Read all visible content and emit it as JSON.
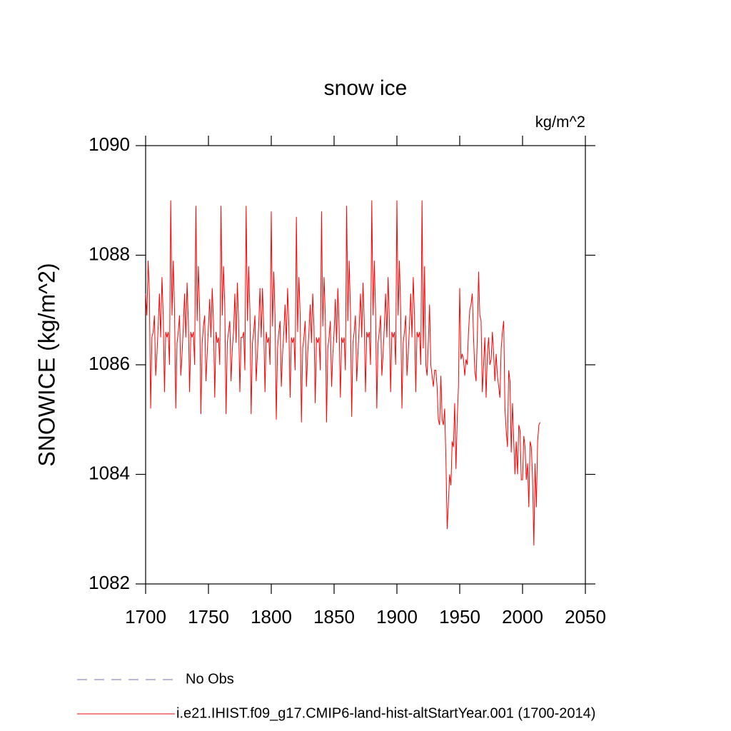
{
  "chart_data": {
    "type": "line",
    "title": "snow ice",
    "units": "kg/m^2",
    "ylabel": "SNOWICE  (kg/m^2)",
    "xlim": [
      1700,
      2050
    ],
    "xticks": [
      1700,
      1750,
      1800,
      1850,
      1900,
      1950,
      2000,
      2050
    ],
    "ylim": [
      1082,
      1090
    ],
    "yticks": [
      1082,
      1084,
      1086,
      1088,
      1090
    ],
    "x": [
      1700,
      1701,
      1702,
      1703,
      1704,
      1705,
      1706,
      1707,
      1708,
      1709,
      1710,
      1711,
      1712,
      1713,
      1714,
      1715,
      1716,
      1717,
      1718,
      1719,
      1720,
      1721,
      1722,
      1723,
      1724,
      1725,
      1726,
      1727,
      1728,
      1729,
      1730,
      1731,
      1732,
      1733,
      1734,
      1735,
      1736,
      1737,
      1738,
      1739,
      1740,
      1741,
      1742,
      1743,
      1744,
      1745,
      1746,
      1747,
      1748,
      1749,
      1750,
      1751,
      1752,
      1753,
      1754,
      1755,
      1756,
      1757,
      1758,
      1759,
      1760,
      1761,
      1762,
      1763,
      1764,
      1765,
      1766,
      1767,
      1768,
      1769,
      1770,
      1771,
      1772,
      1773,
      1774,
      1775,
      1776,
      1777,
      1778,
      1779,
      1780,
      1781,
      1782,
      1783,
      1784,
      1785,
      1786,
      1787,
      1788,
      1789,
      1790,
      1791,
      1792,
      1793,
      1794,
      1795,
      1796,
      1797,
      1798,
      1799,
      1800,
      1801,
      1802,
      1803,
      1804,
      1805,
      1806,
      1807,
      1808,
      1809,
      1810,
      1811,
      1812,
      1813,
      1814,
      1815,
      1816,
      1817,
      1818,
      1819,
      1820,
      1821,
      1822,
      1823,
      1824,
      1825,
      1826,
      1827,
      1828,
      1829,
      1830,
      1831,
      1832,
      1833,
      1834,
      1835,
      1836,
      1837,
      1838,
      1839,
      1840,
      1841,
      1842,
      1843,
      1844,
      1845,
      1846,
      1847,
      1848,
      1849,
      1850,
      1851,
      1852,
      1853,
      1854,
      1855,
      1856,
      1857,
      1858,
      1859,
      1860,
      1861,
      1862,
      1863,
      1864,
      1865,
      1866,
      1867,
      1868,
      1869,
      1870,
      1871,
      1872,
      1873,
      1874,
      1875,
      1876,
      1877,
      1878,
      1879,
      1880,
      1881,
      1882,
      1883,
      1884,
      1885,
      1886,
      1887,
      1888,
      1889,
      1890,
      1891,
      1892,
      1893,
      1894,
      1895,
      1896,
      1897,
      1898,
      1899,
      1900,
      1901,
      1902,
      1903,
      1904,
      1905,
      1906,
      1907,
      1908,
      1909,
      1910,
      1911,
      1912,
      1913,
      1914,
      1915,
      1916,
      1917,
      1918,
      1919,
      1920,
      1921,
      1922,
      1923,
      1924,
      1925,
      1926,
      1927,
      1928,
      1929,
      1930,
      1931,
      1932,
      1933,
      1934,
      1935,
      1936,
      1937,
      1938,
      1939,
      1940,
      1941,
      1942,
      1943,
      1944,
      1945,
      1946,
      1947,
      1948,
      1949,
      1950,
      1951,
      1952,
      1953,
      1954,
      1955,
      1956,
      1957,
      1958,
      1959,
      1960,
      1961,
      1962,
      1963,
      1964,
      1965,
      1966,
      1967,
      1968,
      1969,
      1970,
      1971,
      1972,
      1973,
      1974,
      1975,
      1976,
      1977,
      1978,
      1979,
      1980,
      1981,
      1982,
      1983,
      1984,
      1985,
      1986,
      1987,
      1988,
      1989,
      1990,
      1991,
      1992,
      1993,
      1994,
      1995,
      1996,
      1997,
      1998,
      1999,
      2000,
      2001,
      2002,
      2003,
      2004,
      2005,
      2006,
      2007,
      2008,
      2009,
      2010,
      2011,
      2012,
      2013,
      2014
    ],
    "series": [
      {
        "name": "No Obs",
        "color": "#7b6fc0",
        "dash": true
      },
      {
        "name": "i.e21.IHIST.f09_g17.CMIP6-land-hist-altStartYear.001 (1700-2014)",
        "color": "#ff0000",
        "dash": false,
        "values": [
          1087.3,
          1086.9,
          1087.9,
          1087.3,
          1085.2,
          1086.5,
          1086.6,
          1086.9,
          1085.8,
          1086.2,
          1086.7,
          1087.3,
          1086.5,
          1087.6,
          1086.9,
          1085.5,
          1086.6,
          1086.5,
          1086.6,
          1086.0,
          1089.0,
          1086.9,
          1087.9,
          1087.0,
          1085.2,
          1086.4,
          1086.6,
          1086.9,
          1085.8,
          1086.2,
          1086.7,
          1087.3,
          1086.5,
          1087.5,
          1086.8,
          1085.5,
          1086.6,
          1086.5,
          1086.6,
          1086.0,
          1088.9,
          1086.8,
          1087.8,
          1087.0,
          1085.1,
          1086.4,
          1086.7,
          1086.9,
          1085.7,
          1086.2,
          1086.7,
          1087.2,
          1086.5,
          1087.4,
          1086.8,
          1085.4,
          1086.6,
          1086.4,
          1086.5,
          1086.0,
          1088.9,
          1086.9,
          1087.8,
          1087.1,
          1085.1,
          1086.4,
          1086.6,
          1086.8,
          1085.7,
          1086.3,
          1086.6,
          1087.3,
          1086.4,
          1087.5,
          1086.8,
          1085.5,
          1086.5,
          1086.5,
          1086.6,
          1085.9,
          1088.9,
          1086.8,
          1087.8,
          1087.0,
          1085.1,
          1086.4,
          1086.6,
          1086.9,
          1085.7,
          1086.2,
          1086.7,
          1087.4,
          1086.5,
          1087.4,
          1086.7,
          1085.5,
          1086.6,
          1086.4,
          1086.5,
          1086.0,
          1088.8,
          1086.7,
          1087.7,
          1086.9,
          1085.0,
          1086.3,
          1086.6,
          1086.8,
          1085.6,
          1086.2,
          1086.6,
          1087.1,
          1086.4,
          1087.4,
          1086.7,
          1085.4,
          1086.5,
          1086.4,
          1086.5,
          1085.9,
          1088.7,
          1086.6,
          1087.6,
          1086.9,
          1084.95,
          1086.3,
          1086.5,
          1086.8,
          1085.6,
          1086.2,
          1086.6,
          1087.1,
          1086.4,
          1087.3,
          1086.7,
          1085.3,
          1086.5,
          1086.4,
          1086.5,
          1085.9,
          1088.8,
          1086.7,
          1087.6,
          1086.9,
          1084.95,
          1086.3,
          1086.5,
          1086.8,
          1085.6,
          1086.2,
          1086.6,
          1087.2,
          1086.4,
          1087.4,
          1086.7,
          1085.4,
          1086.5,
          1086.4,
          1086.5,
          1085.9,
          1088.9,
          1086.8,
          1087.9,
          1087.0,
          1085.05,
          1086.4,
          1086.6,
          1086.9,
          1085.7,
          1086.2,
          1086.7,
          1087.3,
          1086.5,
          1087.5,
          1086.8,
          1085.5,
          1086.6,
          1086.5,
          1086.6,
          1086.0,
          1089.0,
          1086.9,
          1087.9,
          1087.0,
          1085.2,
          1086.4,
          1086.6,
          1086.9,
          1085.8,
          1086.2,
          1086.7,
          1087.3,
          1086.5,
          1087.6,
          1086.8,
          1085.5,
          1086.6,
          1086.5,
          1086.6,
          1086.0,
          1089.0,
          1086.9,
          1087.9,
          1087.0,
          1085.2,
          1086.4,
          1086.6,
          1086.9,
          1085.8,
          1086.2,
          1086.7,
          1087.3,
          1086.5,
          1087.6,
          1086.9,
          1085.5,
          1086.6,
          1086.5,
          1086.6,
          1086.0,
          1089.0,
          1086.3,
          1087.8,
          1086.0,
          1085.8,
          1086.4,
          1087.1,
          1086.0,
          1085.8,
          1085.6,
          1085.9,
          1085.9,
          1085.6,
          1085.0,
          1084.9,
          1085.8,
          1085.0,
          1084.9,
          1085.2,
          1084.3,
          1083.0,
          1083.5,
          1084.0,
          1083.8,
          1084.6,
          1084.5,
          1085.3,
          1084.1,
          1085.0,
          1085.6,
          1087.4,
          1086.1,
          1086.2,
          1086.1,
          1085.8,
          1086.1,
          1086.0,
          1086.6,
          1087.0,
          1087.1,
          1087.3,
          1086.5,
          1085.9,
          1085.7,
          1086.5,
          1087.7,
          1086.9,
          1086.8,
          1085.5,
          1086.0,
          1086.5,
          1085.4,
          1086.2,
          1086.5,
          1086.0,
          1086.1,
          1086.6,
          1086.2,
          1085.7,
          1086.2,
          1085.8,
          1085.6,
          1085.4,
          1086.3,
          1086.6,
          1086.8,
          1085.2,
          1084.8,
          1084.5,
          1085.9,
          1085.7,
          1084.4,
          1085.3,
          1084.6,
          1084.0,
          1084.6,
          1084.0,
          1084.9,
          1084.8,
          1083.9,
          1083.9,
          1084.7,
          1084.5,
          1083.9,
          1084.2,
          1083.4,
          1084.6,
          1084.5,
          1083.9,
          1082.7,
          1084.2,
          1083.4,
          1084.6,
          1084.9,
          1084.95
        ]
      }
    ]
  }
}
